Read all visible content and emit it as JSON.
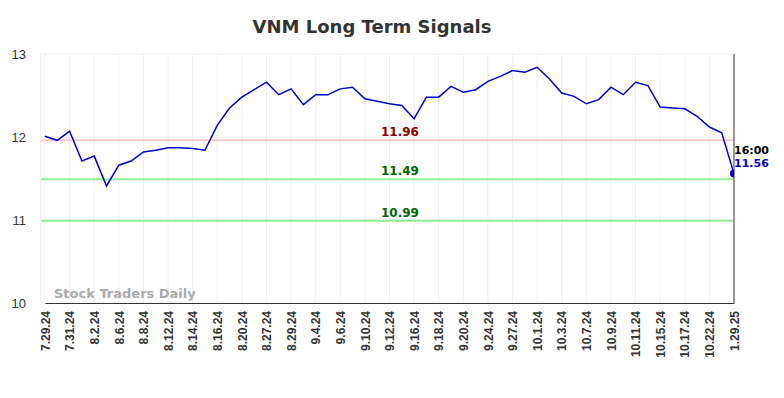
{
  "chart_data": {
    "type": "line",
    "title": "VNM Long Term Signals",
    "watermark": "Stock Traders Daily",
    "last_time": "16:00",
    "categories": [
      "7.29.24",
      null,
      "7.31.24",
      null,
      "8.2.24",
      null,
      "8.6.24",
      null,
      "8.8.24",
      null,
      "8.12.24",
      null,
      "8.14.24",
      null,
      "8.16.24",
      null,
      "8.20.24",
      null,
      "8.27.24",
      null,
      "8.29.24",
      null,
      "9.4.24",
      null,
      "9.6.24",
      null,
      "9.10.24",
      null,
      "9.12.24",
      null,
      "9.16.24",
      null,
      "9.18.24",
      null,
      "9.20.24",
      null,
      "9.24.24",
      null,
      "9.27.24",
      null,
      "10.1.24",
      null,
      "10.3.24",
      null,
      "10.7.24",
      null,
      "10.9.24",
      null,
      "10.11.24",
      null,
      "10.15.24",
      null,
      "10.17.24",
      null,
      "10.22.24",
      null,
      "1.29.25"
    ],
    "values": [
      12.01,
      11.96,
      12.07,
      11.71,
      11.77,
      11.41,
      11.66,
      11.71,
      11.82,
      11.84,
      11.87,
      11.87,
      11.86,
      11.84,
      12.14,
      12.35,
      12.48,
      12.57,
      12.66,
      12.51,
      12.58,
      12.39,
      12.51,
      12.51,
      12.58,
      12.6,
      12.46,
      12.43,
      12.4,
      12.38,
      12.22,
      12.48,
      12.48,
      12.61,
      12.54,
      12.57,
      12.67,
      12.73,
      12.8,
      12.78,
      12.84,
      12.7,
      12.53,
      12.49,
      12.4,
      12.45,
      12.6,
      12.51,
      12.66,
      12.62,
      12.36,
      12.35,
      12.34,
      12.25,
      12.12,
      12.05,
      11.56
    ],
    "color": "#0000cc",
    "marker": "last",
    "ylim": [
      10,
      13
    ],
    "yticks": [
      10,
      11,
      12,
      13
    ],
    "grid": true,
    "reference_lines": [
      {
        "value": 11.96,
        "color": "#ffc8c8",
        "label_color": "#8b0000"
      },
      {
        "value": 11.49,
        "color": "#90ee90",
        "label_color": "#006400"
      },
      {
        "value": 10.99,
        "color": "#90ee90",
        "label_color": "#006400"
      }
    ]
  }
}
